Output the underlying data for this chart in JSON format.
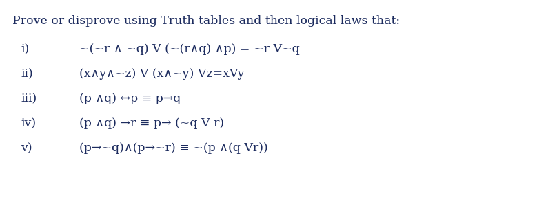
{
  "title": "Prove or disprove using Truth tables and then logical laws that:",
  "background_color": "#ffffff",
  "text_color": "#1c2b5e",
  "title_fontsize": 12.5,
  "item_fontsize": 12.5,
  "label_fontsize": 12.5,
  "items": [
    {
      "label": "i)",
      "text": "~(~r ∧ ~q) V (~(r∧q) ∧p) = ~r V~q"
    },
    {
      "label": "ii)",
      "text": "(x∧y∧~z) V (x∧~y) Vz=xVy"
    },
    {
      "label": "iii)",
      "text": "(p ∧q) ↔p ≡ p→q"
    },
    {
      "label": "iv)",
      "text": "(p ∧q) →r ≡ p→ (~q V r)"
    },
    {
      "label": "v)",
      "text": "(p→~q)∧(p→~r) ≡ ~(p ∧(q Vr))"
    }
  ]
}
